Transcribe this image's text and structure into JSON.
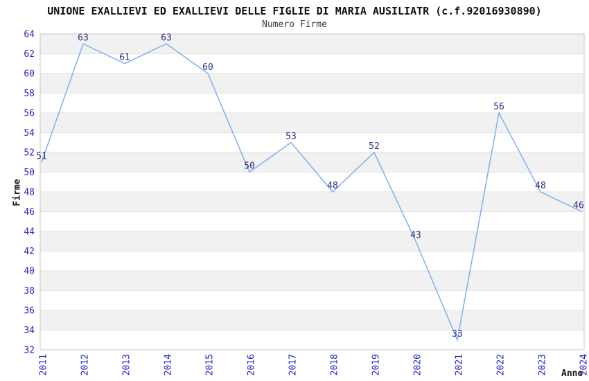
{
  "chart_data": {
    "type": "line",
    "title": "UNIONE EXALLIEVI ED EXALLIEVI DELLE FIGLIE DI MARIA AUSILIATR (c.f.92016930890)",
    "subtitle": "Numero Firme",
    "xlabel": "Anno",
    "ylabel": "Firme",
    "categories": [
      "2011",
      "2012",
      "2013",
      "2014",
      "2015",
      "2016",
      "2017",
      "2018",
      "2019",
      "2020",
      "2021",
      "2022",
      "2023",
      "2024"
    ],
    "values": [
      51,
      63,
      61,
      63,
      60,
      50,
      53,
      48,
      52,
      43,
      33,
      56,
      48,
      46
    ],
    "ylim": [
      32,
      64
    ],
    "ytick_step": 2,
    "grid": true,
    "legend_position": "none",
    "point_labels_visible": true,
    "colors": {
      "line": "#7cb0ee",
      "tick_label": "#2323cc",
      "value_label": "#30308c",
      "band": "#f1f1f1",
      "grid_line": "#e2e2e2",
      "plot_border": "#c8c8c8",
      "title": "#101010",
      "subtitle": "#3d3d3d",
      "axis_label": "#1a1a1a",
      "background": "#ffffff"
    }
  }
}
